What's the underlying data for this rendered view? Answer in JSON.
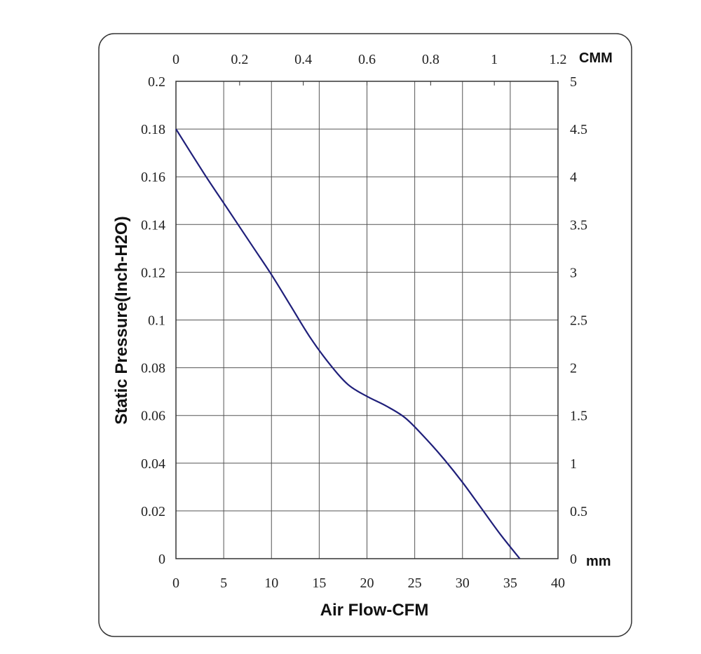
{
  "chart_data": {
    "type": "line",
    "title": "",
    "xlabel": "Air Flow-CFM",
    "ylabel": "Static Pressure(Inch-H2O)",
    "xlim": [
      0,
      40
    ],
    "ylim": [
      0,
      0.2
    ],
    "x_ticks": [
      "0",
      "5",
      "10",
      "15",
      "20",
      "25",
      "30",
      "35",
      "40"
    ],
    "y_ticks": [
      "0",
      "0.02",
      "0.04",
      "0.06",
      "0.08",
      "0.1",
      "0.12",
      "0.14",
      "0.16",
      "0.18",
      "0.2"
    ],
    "secondary_x": {
      "unit_label": "CMM",
      "lim": [
        0,
        1.2
      ],
      "ticks": [
        "0",
        "0.2",
        "0.4",
        "0.6",
        "0.8",
        "1",
        "1.2"
      ]
    },
    "secondary_y": {
      "unit_label": "mm",
      "lim": [
        0,
        5
      ],
      "ticks": [
        "0",
        "0.5",
        "1",
        "1.5",
        "2",
        "2.5",
        "3",
        "3.5",
        "4",
        "4.5",
        "5"
      ]
    },
    "grid": true,
    "line_color": "#1f1f7a",
    "series": [
      {
        "name": "",
        "x": [
          0,
          3,
          5,
          8,
          10,
          12,
          14,
          16,
          18,
          20,
          22,
          24,
          26,
          28,
          30,
          32,
          34,
          36
        ],
        "y": [
          0.18,
          0.161,
          0.149,
          0.131,
          0.119,
          0.106,
          0.093,
          0.082,
          0.073,
          0.068,
          0.064,
          0.059,
          0.051,
          0.042,
          0.032,
          0.021,
          0.01,
          0
        ]
      }
    ]
  }
}
